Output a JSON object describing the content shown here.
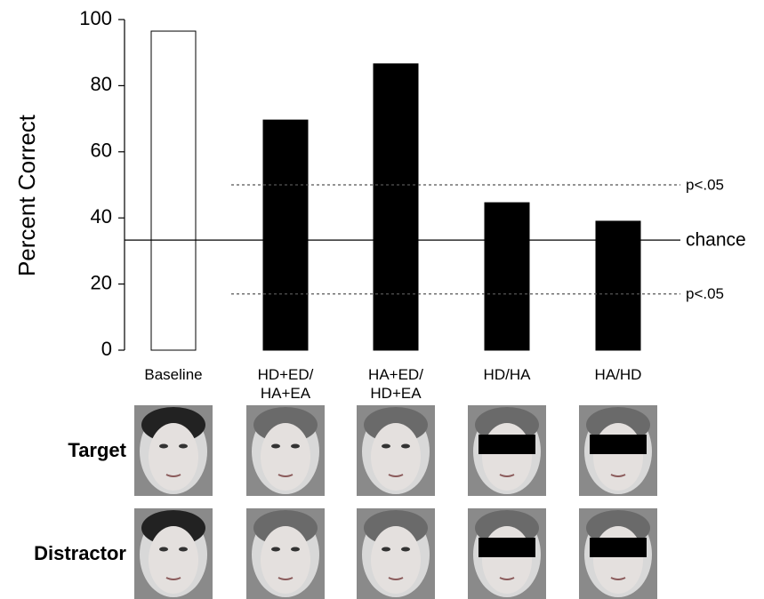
{
  "chart_data": {
    "type": "bar",
    "ylabel": "Percent Correct",
    "categories": [
      "Baseline",
      "HD+ED/\nHA+EA",
      "HA+ED/\nHD+EA",
      "HD/HA",
      "HA/HD"
    ],
    "values": [
      96.5,
      69.6,
      86.6,
      44.6,
      39
    ],
    "colors": [
      "#ffffff",
      "#000000",
      "#000000",
      "#000000",
      "#000000"
    ],
    "ylim": [
      0,
      100
    ],
    "yticks": [
      0,
      20,
      40,
      60,
      80,
      100
    ],
    "reference_lines": [
      {
        "value": 50,
        "label": "p<.05",
        "style": "dashed"
      },
      {
        "value": 33.3,
        "label": "chance",
        "style": "solid"
      },
      {
        "value": 17,
        "label": "p<.05",
        "style": "dashed"
      }
    ]
  },
  "stimuli": {
    "rows": [
      "Target",
      "Distractor"
    ]
  }
}
